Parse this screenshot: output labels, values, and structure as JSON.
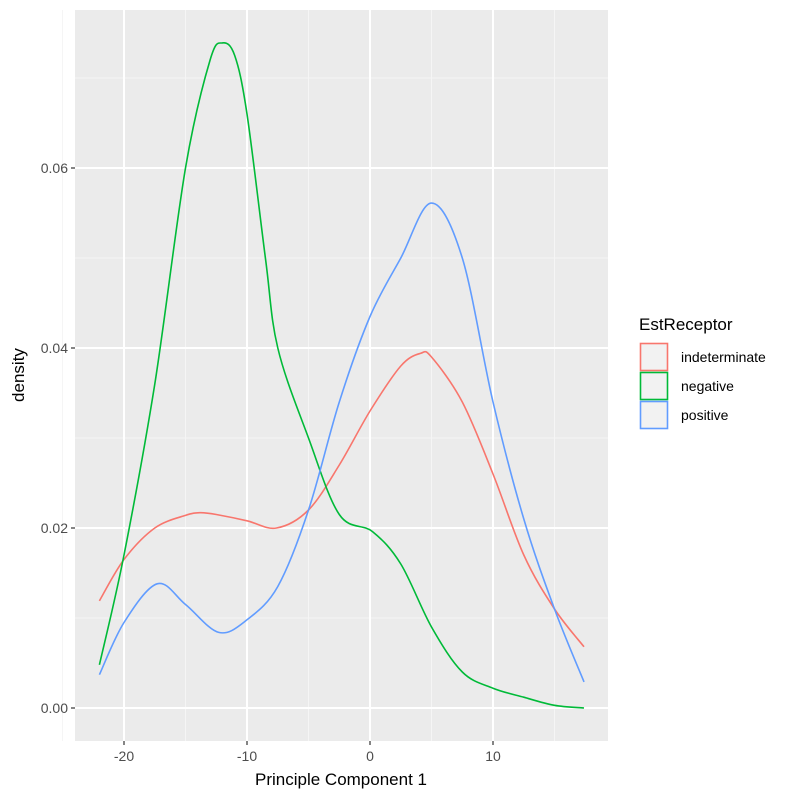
{
  "chart_data": {
    "type": "line",
    "subtype": "density",
    "title": "",
    "xlabel": "Principle Component 1",
    "ylabel": "density",
    "xlim": [
      -24,
      19.5
    ],
    "ylim": [
      -0.0037,
      0.0775
    ],
    "x_ticks": [
      -20,
      -10,
      0,
      10
    ],
    "x_tick_labels": [
      "-20",
      "-10",
      "0",
      "10"
    ],
    "y_ticks": [
      0.0,
      0.02,
      0.04,
      0.06
    ],
    "y_tick_labels": [
      "0.00",
      "0.02",
      "0.04",
      "0.06"
    ],
    "grid": true,
    "legend_position": "right",
    "legend_title": "EstReceptor",
    "series": [
      {
        "name": "indeterminate",
        "color": "#F8766D",
        "x": [
          -22,
          -20,
          -17.5,
          -15,
          -13.8,
          -12.5,
          -10,
          -7.6,
          -5,
          -2.5,
          0,
          2.5,
          4.1,
          5,
          7.5,
          10,
          12.5,
          15,
          17.4
        ],
        "values": [
          0.0119,
          0.0165,
          0.02,
          0.0214,
          0.0217,
          0.0215,
          0.0208,
          0.02,
          0.022,
          0.027,
          0.033,
          0.038,
          0.0394,
          0.039,
          0.034,
          0.026,
          0.017,
          0.011,
          0.0068
        ]
      },
      {
        "name": "negative",
        "color": "#00BA38",
        "x": [
          -22,
          -20,
          -17.5,
          -15,
          -13,
          -12,
          -11,
          -10,
          -8.5,
          -7.5,
          -5,
          -2.5,
          0.2,
          2.5,
          5,
          7.5,
          10,
          12.5,
          15,
          17.4
        ],
        "values": [
          0.0048,
          0.017,
          0.036,
          0.06,
          0.072,
          0.0739,
          0.0725,
          0.066,
          0.05,
          0.04,
          0.03,
          0.0215,
          0.0196,
          0.016,
          0.009,
          0.004,
          0.0022,
          0.0012,
          0.0003,
          0.0
        ]
      },
      {
        "name": "positive",
        "color": "#619CFF",
        "x": [
          -22,
          -20,
          -17.3,
          -15,
          -12.3,
          -10,
          -7.5,
          -5,
          -2.5,
          0,
          2.5,
          5,
          7.5,
          10,
          12.5,
          15,
          17.4
        ],
        "values": [
          0.0037,
          0.0095,
          0.0138,
          0.0115,
          0.0084,
          0.0098,
          0.0135,
          0.022,
          0.034,
          0.0435,
          0.05,
          0.0561,
          0.05,
          0.034,
          0.021,
          0.011,
          0.0029
        ]
      }
    ]
  }
}
